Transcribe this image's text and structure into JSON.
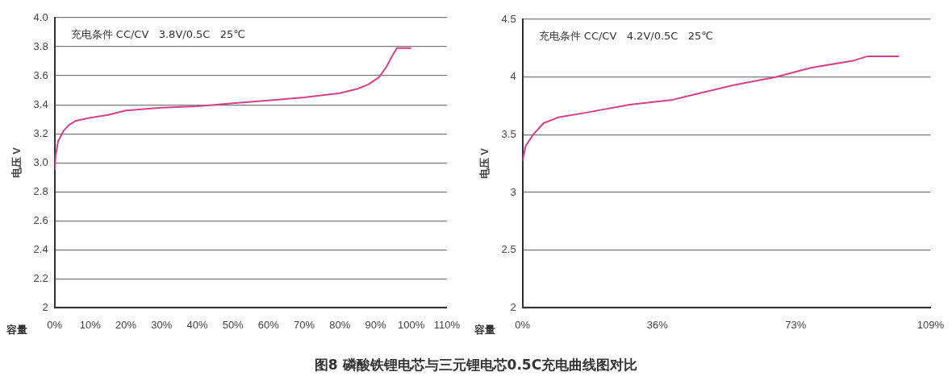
{
  "chart_data": [
    {
      "type": "line",
      "xlabel": "容量",
      "ylabel": "电压 V",
      "annotations": [
        "充电条件 CC/CV   3.8V/0.5C   25℃",
        "图8 磷酸铁锂电芯与三元锂电芯0.5C充电曲线图对比"
      ],
      "xlim": [
        0,
        110
      ],
      "xticks": [
        {
          "value": 0,
          "label": "0%"
        },
        {
          "value": 10,
          "label": "10%"
        },
        {
          "value": 20,
          "label": "20%"
        },
        {
          "value": 30,
          "label": "30%"
        },
        {
          "value": 40,
          "label": "40%"
        },
        {
          "value": 50,
          "label": "50%"
        },
        {
          "value": 60,
          "label": "60%"
        },
        {
          "value": 70,
          "label": "70%"
        },
        {
          "value": 80,
          "label": "80%"
        },
        {
          "value": 90,
          "label": "90%"
        },
        {
          "value": 100,
          "label": "100%"
        },
        {
          "value": 110,
          "label": "110%"
        }
      ],
      "ylim": [
        2,
        4
      ],
      "yticks": [
        2,
        2.2,
        2.4,
        2.6,
        2.8,
        {
          "value": 3,
          "label": "3.0"
        },
        3.2,
        3.4,
        3.6,
        3.8,
        {
          "value": 4,
          "label": "4.0"
        }
      ],
      "grid": "y",
      "marker": "none",
      "line_style": "solid",
      "series": [
        {
          "color": "#d6408a",
          "x": [
            0,
            0.3,
            1,
            2.5,
            4,
            6,
            10,
            15,
            20,
            25,
            30,
            40,
            50,
            60,
            70,
            80,
            85,
            88,
            91,
            93,
            95,
            96,
            100
          ],
          "values": [
            2.95,
            3.05,
            3.15,
            3.22,
            3.26,
            3.29,
            3.31,
            3.33,
            3.36,
            3.37,
            3.38,
            3.39,
            3.41,
            3.43,
            3.45,
            3.48,
            3.51,
            3.54,
            3.59,
            3.66,
            3.75,
            3.79,
            3.79
          ]
        }
      ]
    },
    {
      "type": "line",
      "xlabel": "容量",
      "ylabel": "电压 V",
      "annotations": [
        "充电条件 CC/CV   4.2V/0.5C   25℃"
      ],
      "xlim": [
        0,
        109
      ],
      "xticks": [
        {
          "value": 0,
          "label": "0%"
        },
        {
          "value": 36,
          "label": "36%"
        },
        {
          "value": 73,
          "label": "73%"
        },
        {
          "value": 109,
          "label": "109%"
        }
      ],
      "ylim": [
        2,
        4.5
      ],
      "yticks": [
        2,
        2.5,
        3,
        3.5,
        4,
        4.5
      ],
      "grid": "y",
      "marker": "none",
      "line_style": "solid",
      "series": [
        {
          "color": "#d6408a",
          "x": [
            0,
            0.8,
            2.8,
            5.6,
            9.5,
            16.7,
            28.6,
            39.7,
            46,
            56.4,
            67.6,
            77,
            88.2,
            92.2,
            100.6
          ],
          "values": [
            3.27,
            3.4,
            3.5,
            3.6,
            3.65,
            3.69,
            3.76,
            3.8,
            3.85,
            3.93,
            4,
            4.08,
            4.14,
            4.18,
            4.18
          ]
        }
      ]
    }
  ]
}
